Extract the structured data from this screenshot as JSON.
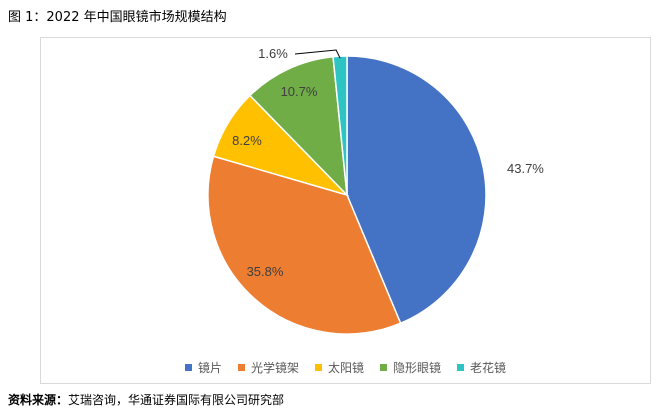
{
  "figure": {
    "title": "图 1：2022 年中国眼镜市场规模结构",
    "source_label": "资料来源：",
    "source_text": "艾瑞咨询，华通证券国际有限公司研究部"
  },
  "chart_data": {
    "type": "pie",
    "title": "",
    "legend_position": "bottom",
    "slices": [
      {
        "label": "镜片",
        "value": 43.7,
        "display": "43.7%",
        "color": "#4472C4"
      },
      {
        "label": "光学镜架",
        "value": 35.8,
        "display": "35.8%",
        "color": "#ED7D31"
      },
      {
        "label": "太阳镜",
        "value": 8.2,
        "display": "8.2%",
        "color": "#FFC000"
      },
      {
        "label": "隐形眼镜",
        "value": 10.7,
        "display": "10.7%",
        "color": "#70AD47"
      },
      {
        "label": "老花镜",
        "value": 1.6,
        "display": "1.6%",
        "color": "#2EC4C4"
      }
    ]
  }
}
